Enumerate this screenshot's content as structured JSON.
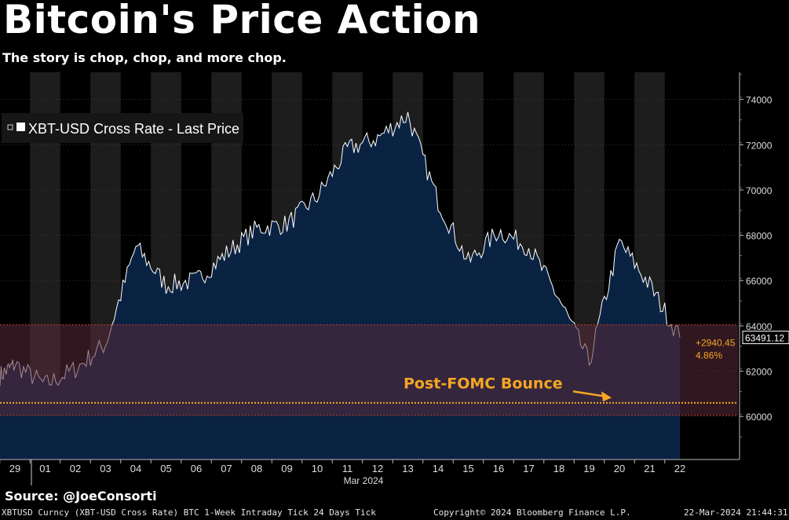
{
  "header": {
    "title": "Bitcoin's Price Action",
    "subtitle": "The story is chop, chop, and more chop."
  },
  "colors": {
    "background": "#000000",
    "area_fill": "#0b2446",
    "band_fill": "#1d1d1d",
    "price_line": "#ffffff",
    "highlight_zone": "#5a2a3a",
    "highlight_border": "#c0392b",
    "annotation": "#f5a623"
  },
  "chart_data": {
    "type": "area",
    "legend": {
      "label": "XBT-USD Cross Rate - Last Price",
      "position": "top-left"
    },
    "x_tick_labels": [
      "29",
      "01",
      "02",
      "03",
      "04",
      "05",
      "06",
      "07",
      "08",
      "09",
      "10",
      "11",
      "12",
      "13",
      "14",
      "15",
      "16",
      "17",
      "18",
      "19",
      "20",
      "21",
      "22"
    ],
    "x_month_label": "Mar 2024",
    "y_ticks": [
      60000,
      62000,
      64000,
      66000,
      68000,
      70000,
      72000,
      74000
    ],
    "y_tick_labels": [
      "60000",
      "62000",
      "64000",
      "66000",
      "68000",
      "70000",
      "72000",
      "74000"
    ],
    "ylim": [
      58100,
      75200
    ],
    "series": [
      {
        "x": [
          "2024-02-28",
          "2024-02-29",
          "2024-03-01",
          "2024-03-02",
          "2024-03-03",
          "2024-03-04",
          "2024-03-05",
          "2024-03-06",
          "2024-03-07",
          "2024-03-08",
          "2024-03-09",
          "2024-03-10",
          "2024-03-11",
          "2024-03-12",
          "2024-03-13",
          "2024-03-14",
          "2024-03-15",
          "2024-03-16",
          "2024-03-17",
          "2024-03-18",
          "2024-03-19",
          "2024-03-20",
          "2024-03-21",
          "2024-03-22"
        ],
        "values": [
          61800,
          62300,
          61400,
          62100,
          63200,
          67500,
          65800,
          66000,
          67200,
          68300,
          68500,
          69700,
          71800,
          72300,
          73300,
          69500,
          66800,
          68200,
          67500,
          65200,
          62400,
          67700,
          65800,
          63491.12
        ]
      }
    ],
    "last_price_label": "63491.12",
    "change_label": "+2940.45",
    "change_pct_label": "4.86%",
    "highlight_zone": {
      "low": 60050,
      "high": 64050
    },
    "reference_level": 60600,
    "annotation": {
      "text": "Post-FOMC Bounce",
      "target_date": "2024-03-20",
      "target_value": 60900
    }
  },
  "source": "Source: @JoeConsorti",
  "footer": {
    "left": "XBTUSD Curncy (XBT-USD Cross Rate) BTC 1-Week Intraday Tick 24 Days  Tick",
    "center": "Copyright© 2024 Bloomberg Finance L.P.",
    "right": "22-Mar-2024 21:44:31"
  }
}
